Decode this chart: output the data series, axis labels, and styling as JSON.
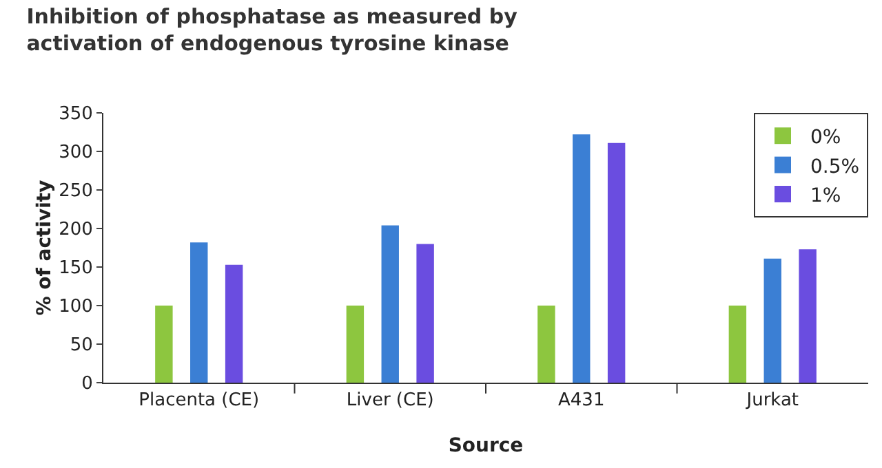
{
  "chart_data": {
    "type": "bar",
    "title": "Inhibition of phosphatase as measured by\nactivation of endogenous tyrosine kinase",
    "xlabel": "Source",
    "ylabel": "% of activity",
    "categories": [
      "Placenta (CE)",
      "Liver (CE)",
      "A431",
      "Jurkat"
    ],
    "series": [
      {
        "name": "0%",
        "color": "#8dc63f",
        "values": [
          100,
          100,
          100,
          100
        ]
      },
      {
        "name": "0.5%",
        "color": "#3b7fd4",
        "values": [
          182,
          204,
          322,
          161
        ]
      },
      {
        "name": "1%",
        "color": "#6a4de0",
        "values": [
          153,
          180,
          311,
          173
        ]
      }
    ],
    "ylim": [
      0,
      350
    ],
    "yticks": [
      0,
      50,
      100,
      150,
      200,
      250,
      300,
      350
    ],
    "grid": false,
    "legend": "top right"
  }
}
